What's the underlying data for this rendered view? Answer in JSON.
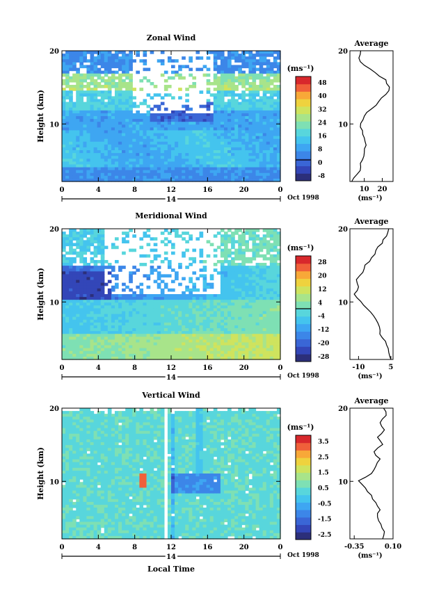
{
  "date_label": "Oct 1998",
  "day_label": "14",
  "xlabel": "Local Time",
  "ylabel": "Height (km)",
  "unit_label": "(ms⁻¹)",
  "x_ticks": [
    "0",
    "4",
    "8",
    "12",
    "16",
    "20",
    "0"
  ],
  "y_ticks": [
    "20",
    "10"
  ],
  "palette": [
    "#2c2f7a",
    "#3346b8",
    "#3a66d6",
    "#3c86e8",
    "#3ea6f2",
    "#44c4ee",
    "#58d6dc",
    "#7ee0b4",
    "#a8e48a",
    "#cfe35e",
    "#efd23e",
    "#f8a838",
    "#f0603a",
    "#d8282c"
  ],
  "chart_data": [
    {
      "type": "heatmap",
      "title": "Zonal Wind",
      "xlabel": "",
      "ylabel": "Height (km)",
      "xlim": [
        0,
        24
      ],
      "ylim": [
        2,
        20
      ],
      "colorbar": {
        "label": "(ms⁻¹)",
        "ticks": [
          "48",
          "40",
          "32",
          "24",
          "16",
          "8",
          "0",
          "-8"
        ],
        "range": [
          -8,
          52
        ]
      },
      "profile": {
        "title": "Average",
        "xlim": [
          2,
          26
        ],
        "x_ticks": [
          "10",
          "20"
        ],
        "xlabel": "(ms⁻¹)",
        "height_km": [
          2,
          3,
          4,
          5,
          6,
          7,
          8,
          9,
          10,
          11,
          12,
          13,
          14,
          15,
          16,
          17,
          18,
          19,
          20
        ],
        "values": [
          3,
          6,
          8,
          9,
          10,
          11,
          10,
          9,
          8,
          10,
          14,
          18,
          22,
          24,
          22,
          16,
          10,
          7,
          8
        ]
      }
    },
    {
      "type": "heatmap",
      "title": "Meridional Wind",
      "xlabel": "",
      "ylabel": "Height (km)",
      "xlim": [
        0,
        24
      ],
      "ylim": [
        2,
        20
      ],
      "colorbar": {
        "label": "(ms⁻¹)",
        "ticks": [
          "28",
          "20",
          "12",
          "4",
          "-4",
          "-12",
          "-20",
          "-28"
        ],
        "range": [
          -28,
          28
        ]
      },
      "profile": {
        "title": "Average",
        "xlim": [
          -14,
          6
        ],
        "x_ticks": [
          "-10",
          "5"
        ],
        "xlabel": "(ms⁻¹)",
        "height_km": [
          2,
          3,
          4,
          5,
          6,
          7,
          8,
          9,
          10,
          11,
          12,
          13,
          14,
          15,
          16,
          17,
          18,
          19,
          20
        ],
        "values": [
          5,
          4,
          3,
          1,
          0,
          -1,
          -3,
          -6,
          -9,
          -12,
          -10,
          -11,
          -8,
          -7,
          -4,
          -2,
          1,
          3,
          4
        ]
      }
    },
    {
      "type": "heatmap",
      "title": "Vertical Wind",
      "xlabel": "Local Time",
      "ylabel": "Height (km)",
      "xlim": [
        0,
        24
      ],
      "ylim": [
        2,
        20
      ],
      "colorbar": {
        "label": "(ms⁻¹)",
        "ticks": [
          "3.5",
          "2.5",
          "1.5",
          "0.5",
          "-0.5",
          "-1.5",
          "-2.5"
        ],
        "range": [
          -3.5,
          3.5
        ]
      },
      "profile": {
        "title": "Average",
        "xlim": [
          -0.4,
          0.1
        ],
        "x_ticks": [
          "-0.35",
          "0.10"
        ],
        "xlabel": "(ms⁻¹)",
        "height_km": [
          2,
          3,
          4,
          5,
          6,
          7,
          8,
          9,
          10,
          11,
          12,
          13,
          14,
          15,
          16,
          17,
          18,
          19,
          20
        ],
        "values": [
          -0.02,
          0.0,
          -0.04,
          -0.08,
          -0.05,
          -0.1,
          -0.15,
          -0.22,
          -0.3,
          -0.15,
          -0.1,
          -0.05,
          -0.12,
          -0.02,
          -0.08,
          0.0,
          -0.05,
          0.02,
          -0.01
        ]
      }
    }
  ]
}
